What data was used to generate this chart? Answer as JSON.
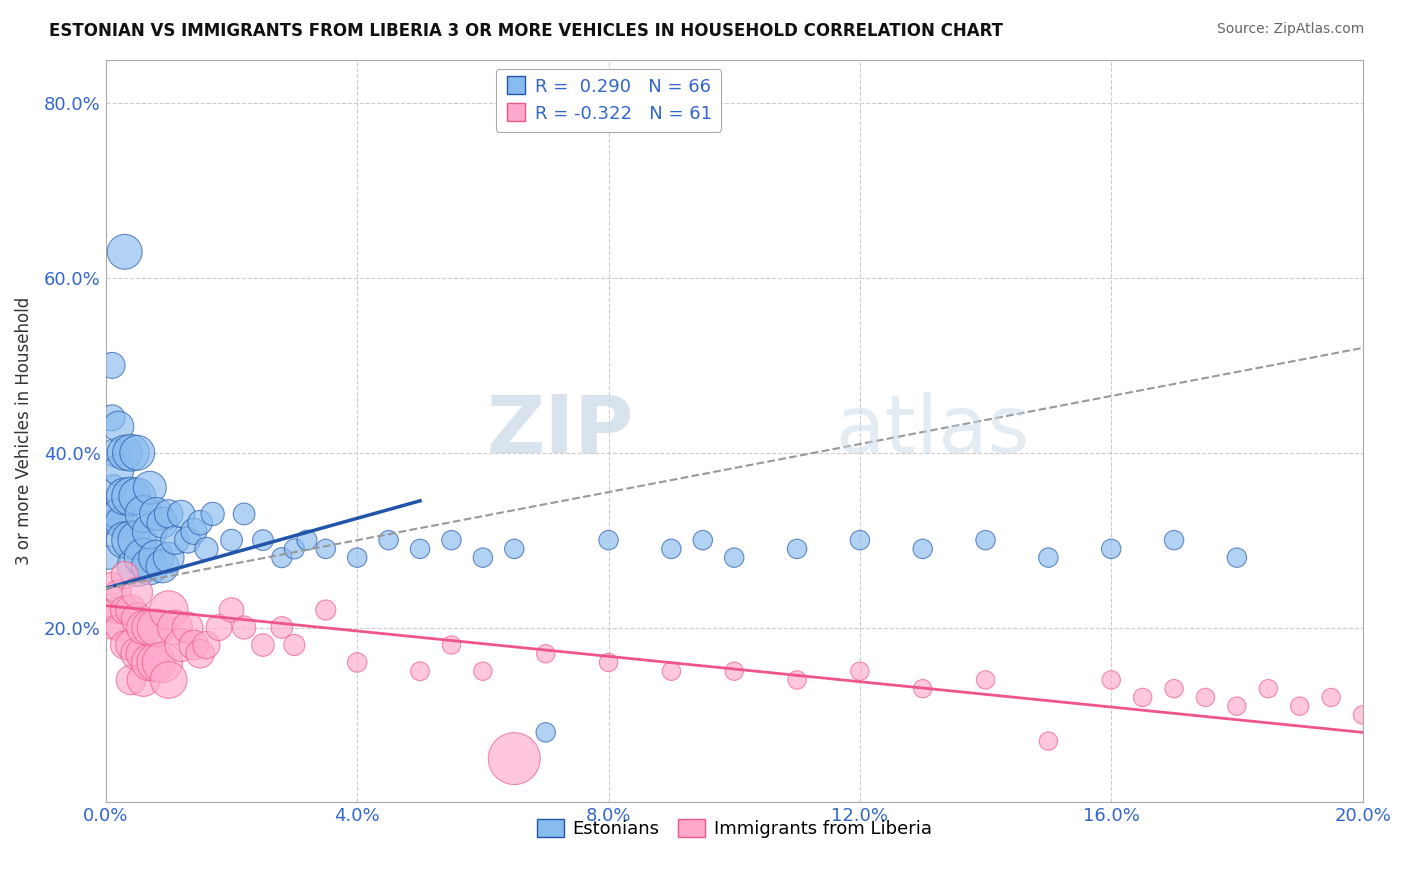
{
  "title": "ESTONIAN VS IMMIGRANTS FROM LIBERIA 3 OR MORE VEHICLES IN HOUSEHOLD CORRELATION CHART",
  "source": "Source: ZipAtlas.com",
  "ylabel": "3 or more Vehicles in Household",
  "legend_entry1": "R =  0.290   N = 66",
  "legend_entry2": "R = -0.322   N = 61",
  "legend_label1": "Estonians",
  "legend_label2": "Immigrants from Liberia",
  "color_blue": "#88bbee",
  "color_pink": "#ffaacc",
  "color_blue_line": "#2255aa",
  "color_pink_line": "#ee5588",
  "watermark_zip": "ZIP",
  "watermark_atlas": "atlas",
  "xlim": [
    0,
    0.2
  ],
  "ylim": [
    0,
    0.85
  ],
  "xticks": [
    0,
    0.04,
    0.08,
    0.12,
    0.16,
    0.2
  ],
  "xtick_labels": [
    "0.0%",
    "4.0%",
    "8.0%",
    "12.0%",
    "16.0%",
    "20.0%"
  ],
  "yticks": [
    0,
    0.2,
    0.4,
    0.6,
    0.8
  ],
  "ytick_labels": [
    "",
    "20.0%",
    "40.0%",
    "60.0%",
    "80.0%"
  ],
  "blue_line_x0": 0.0,
  "blue_line_x1": 0.05,
  "blue_line_y0": 0.245,
  "blue_line_y1": 0.345,
  "pink_line_x0": 0.0,
  "pink_line_x1": 0.2,
  "pink_line_y0": 0.225,
  "pink_line_y1": 0.08,
  "gray_line_x0": 0.0,
  "gray_line_x1": 0.2,
  "gray_line_y0": 0.245,
  "gray_line_y1": 0.52,
  "blue_x": [
    0.0005,
    0.0008,
    0.001,
    0.001,
    0.0012,
    0.0015,
    0.0015,
    0.002,
    0.002,
    0.002,
    0.0025,
    0.003,
    0.003,
    0.003,
    0.003,
    0.004,
    0.004,
    0.004,
    0.005,
    0.005,
    0.005,
    0.005,
    0.006,
    0.006,
    0.007,
    0.007,
    0.007,
    0.008,
    0.008,
    0.009,
    0.009,
    0.01,
    0.01,
    0.011,
    0.012,
    0.013,
    0.014,
    0.015,
    0.016,
    0.017,
    0.02,
    0.022,
    0.025,
    0.028,
    0.03,
    0.032,
    0.035,
    0.04,
    0.045,
    0.05,
    0.055,
    0.06,
    0.065,
    0.07,
    0.08,
    0.09,
    0.095,
    0.1,
    0.11,
    0.12,
    0.13,
    0.14,
    0.15,
    0.16,
    0.17,
    0.18
  ],
  "blue_y": [
    0.28,
    0.32,
    0.44,
    0.5,
    0.36,
    0.33,
    0.4,
    0.33,
    0.38,
    0.43,
    0.32,
    0.3,
    0.35,
    0.4,
    0.63,
    0.3,
    0.35,
    0.4,
    0.27,
    0.3,
    0.35,
    0.4,
    0.28,
    0.33,
    0.27,
    0.31,
    0.36,
    0.28,
    0.33,
    0.27,
    0.32,
    0.28,
    0.33,
    0.3,
    0.33,
    0.3,
    0.31,
    0.32,
    0.29,
    0.33,
    0.3,
    0.33,
    0.3,
    0.28,
    0.29,
    0.3,
    0.29,
    0.28,
    0.3,
    0.29,
    0.3,
    0.28,
    0.29,
    0.08,
    0.3,
    0.29,
    0.3,
    0.28,
    0.29,
    0.3,
    0.29,
    0.3,
    0.28,
    0.29,
    0.3,
    0.28
  ],
  "blue_s": [
    40,
    40,
    50,
    50,
    50,
    60,
    60,
    70,
    70,
    70,
    80,
    100,
    100,
    90,
    90,
    110,
    110,
    100,
    120,
    110,
    100,
    90,
    110,
    100,
    100,
    90,
    80,
    90,
    80,
    80,
    70,
    70,
    60,
    60,
    55,
    50,
    50,
    45,
    40,
    40,
    35,
    35,
    32,
    30,
    30,
    30,
    28,
    28,
    28,
    28,
    28,
    28,
    28,
    28,
    28,
    28,
    28,
    28,
    28,
    28,
    28,
    28,
    28,
    28,
    28,
    28
  ],
  "pink_x": [
    0.0005,
    0.001,
    0.001,
    0.0015,
    0.002,
    0.002,
    0.003,
    0.003,
    0.003,
    0.004,
    0.004,
    0.004,
    0.005,
    0.005,
    0.005,
    0.006,
    0.006,
    0.006,
    0.007,
    0.007,
    0.008,
    0.008,
    0.009,
    0.01,
    0.01,
    0.011,
    0.012,
    0.013,
    0.014,
    0.015,
    0.016,
    0.018,
    0.02,
    0.022,
    0.025,
    0.028,
    0.03,
    0.035,
    0.04,
    0.05,
    0.055,
    0.06,
    0.065,
    0.07,
    0.08,
    0.09,
    0.1,
    0.11,
    0.12,
    0.13,
    0.14,
    0.15,
    0.16,
    0.165,
    0.17,
    0.175,
    0.18,
    0.185,
    0.19,
    0.195,
    0.2
  ],
  "pink_y": [
    0.22,
    0.2,
    0.25,
    0.22,
    0.2,
    0.24,
    0.18,
    0.22,
    0.26,
    0.18,
    0.22,
    0.14,
    0.17,
    0.21,
    0.24,
    0.17,
    0.2,
    0.14,
    0.16,
    0.2,
    0.16,
    0.2,
    0.16,
    0.22,
    0.14,
    0.2,
    0.18,
    0.2,
    0.18,
    0.17,
    0.18,
    0.2,
    0.22,
    0.2,
    0.18,
    0.2,
    0.18,
    0.22,
    0.16,
    0.15,
    0.18,
    0.15,
    0.05,
    0.17,
    0.16,
    0.15,
    0.15,
    0.14,
    0.15,
    0.13,
    0.14,
    0.07,
    0.14,
    0.12,
    0.13,
    0.12,
    0.11,
    0.13,
    0.11,
    0.12,
    0.1
  ],
  "pink_s": [
    30,
    40,
    40,
    50,
    50,
    50,
    60,
    60,
    55,
    70,
    70,
    65,
    80,
    75,
    70,
    90,
    85,
    80,
    100,
    95,
    110,
    105,
    120,
    110,
    100,
    90,
    80,
    70,
    65,
    60,
    55,
    50,
    45,
    40,
    38,
    35,
    33,
    30,
    28,
    26,
    25,
    25,
    200,
    25,
    25,
    25,
    25,
    25,
    25,
    25,
    25,
    25,
    25,
    25,
    25,
    25,
    25,
    25,
    25,
    25,
    25
  ],
  "grid_color": "#cccccc",
  "background_color": "#ffffff"
}
